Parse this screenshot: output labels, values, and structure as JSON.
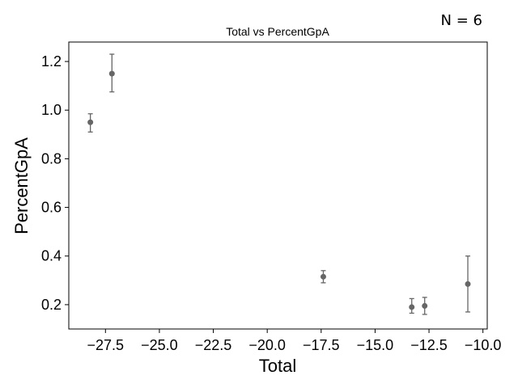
{
  "annotation": "N = 6",
  "chart_data": {
    "type": "scatter",
    "title": "Total vs PercentGpA",
    "xlabel": "Total",
    "ylabel": "PercentGpA",
    "xlim": [
      -29.2,
      -9.8
    ],
    "ylim": [
      0.1,
      1.28
    ],
    "xticks": [
      -27.5,
      -25.0,
      -22.5,
      -20.0,
      -17.5,
      -15.0,
      -12.5,
      -10.0
    ],
    "xtick_labels": [
      "−27.5",
      "−25.0",
      "−22.5",
      "−20.0",
      "−17.5",
      "−15.0",
      "−12.5",
      "−10.0"
    ],
    "yticks": [
      0.2,
      0.4,
      0.6,
      0.8,
      1.0,
      1.2
    ],
    "ytick_labels": [
      "0.2",
      "0.4",
      "0.6",
      "0.8",
      "1.0",
      "1.2"
    ],
    "grid": false,
    "marker_color": "#666666",
    "points": [
      {
        "x": -28.2,
        "y": 0.95,
        "err_low": 0.91,
        "err_high": 0.985
      },
      {
        "x": -27.2,
        "y": 1.15,
        "err_low": 1.075,
        "err_high": 1.23
      },
      {
        "x": -17.4,
        "y": 0.315,
        "err_low": 0.29,
        "err_high": 0.34
      },
      {
        "x": -13.3,
        "y": 0.19,
        "err_low": 0.165,
        "err_high": 0.225
      },
      {
        "x": -12.7,
        "y": 0.195,
        "err_low": 0.16,
        "err_high": 0.23
      },
      {
        "x": -10.7,
        "y": 0.285,
        "err_low": 0.17,
        "err_high": 0.4
      }
    ]
  }
}
